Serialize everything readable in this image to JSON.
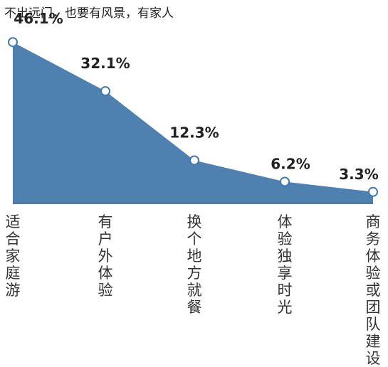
{
  "chart_data": {
    "type": "area",
    "title": "不出远门，也要有风景，有家人",
    "categories": [
      "适合家庭游",
      "有户外体验",
      "换个地方就餐",
      "体验独享时光",
      "商务体验或团队建设"
    ],
    "values": [
      46.1,
      32.1,
      12.3,
      6.2,
      3.3
    ],
    "value_labels": [
      "46.1%",
      "32.1%",
      "12.3%",
      "6.2%",
      "3.3%"
    ],
    "ylim": [
      0,
      50
    ],
    "grid": false,
    "legend": "none",
    "colors": {
      "fill": "#4F81B0",
      "marker_fill": "#ffffff",
      "marker_stroke": "#3F78AE",
      "axis": "#2F5F8F",
      "label": "#222222"
    }
  }
}
